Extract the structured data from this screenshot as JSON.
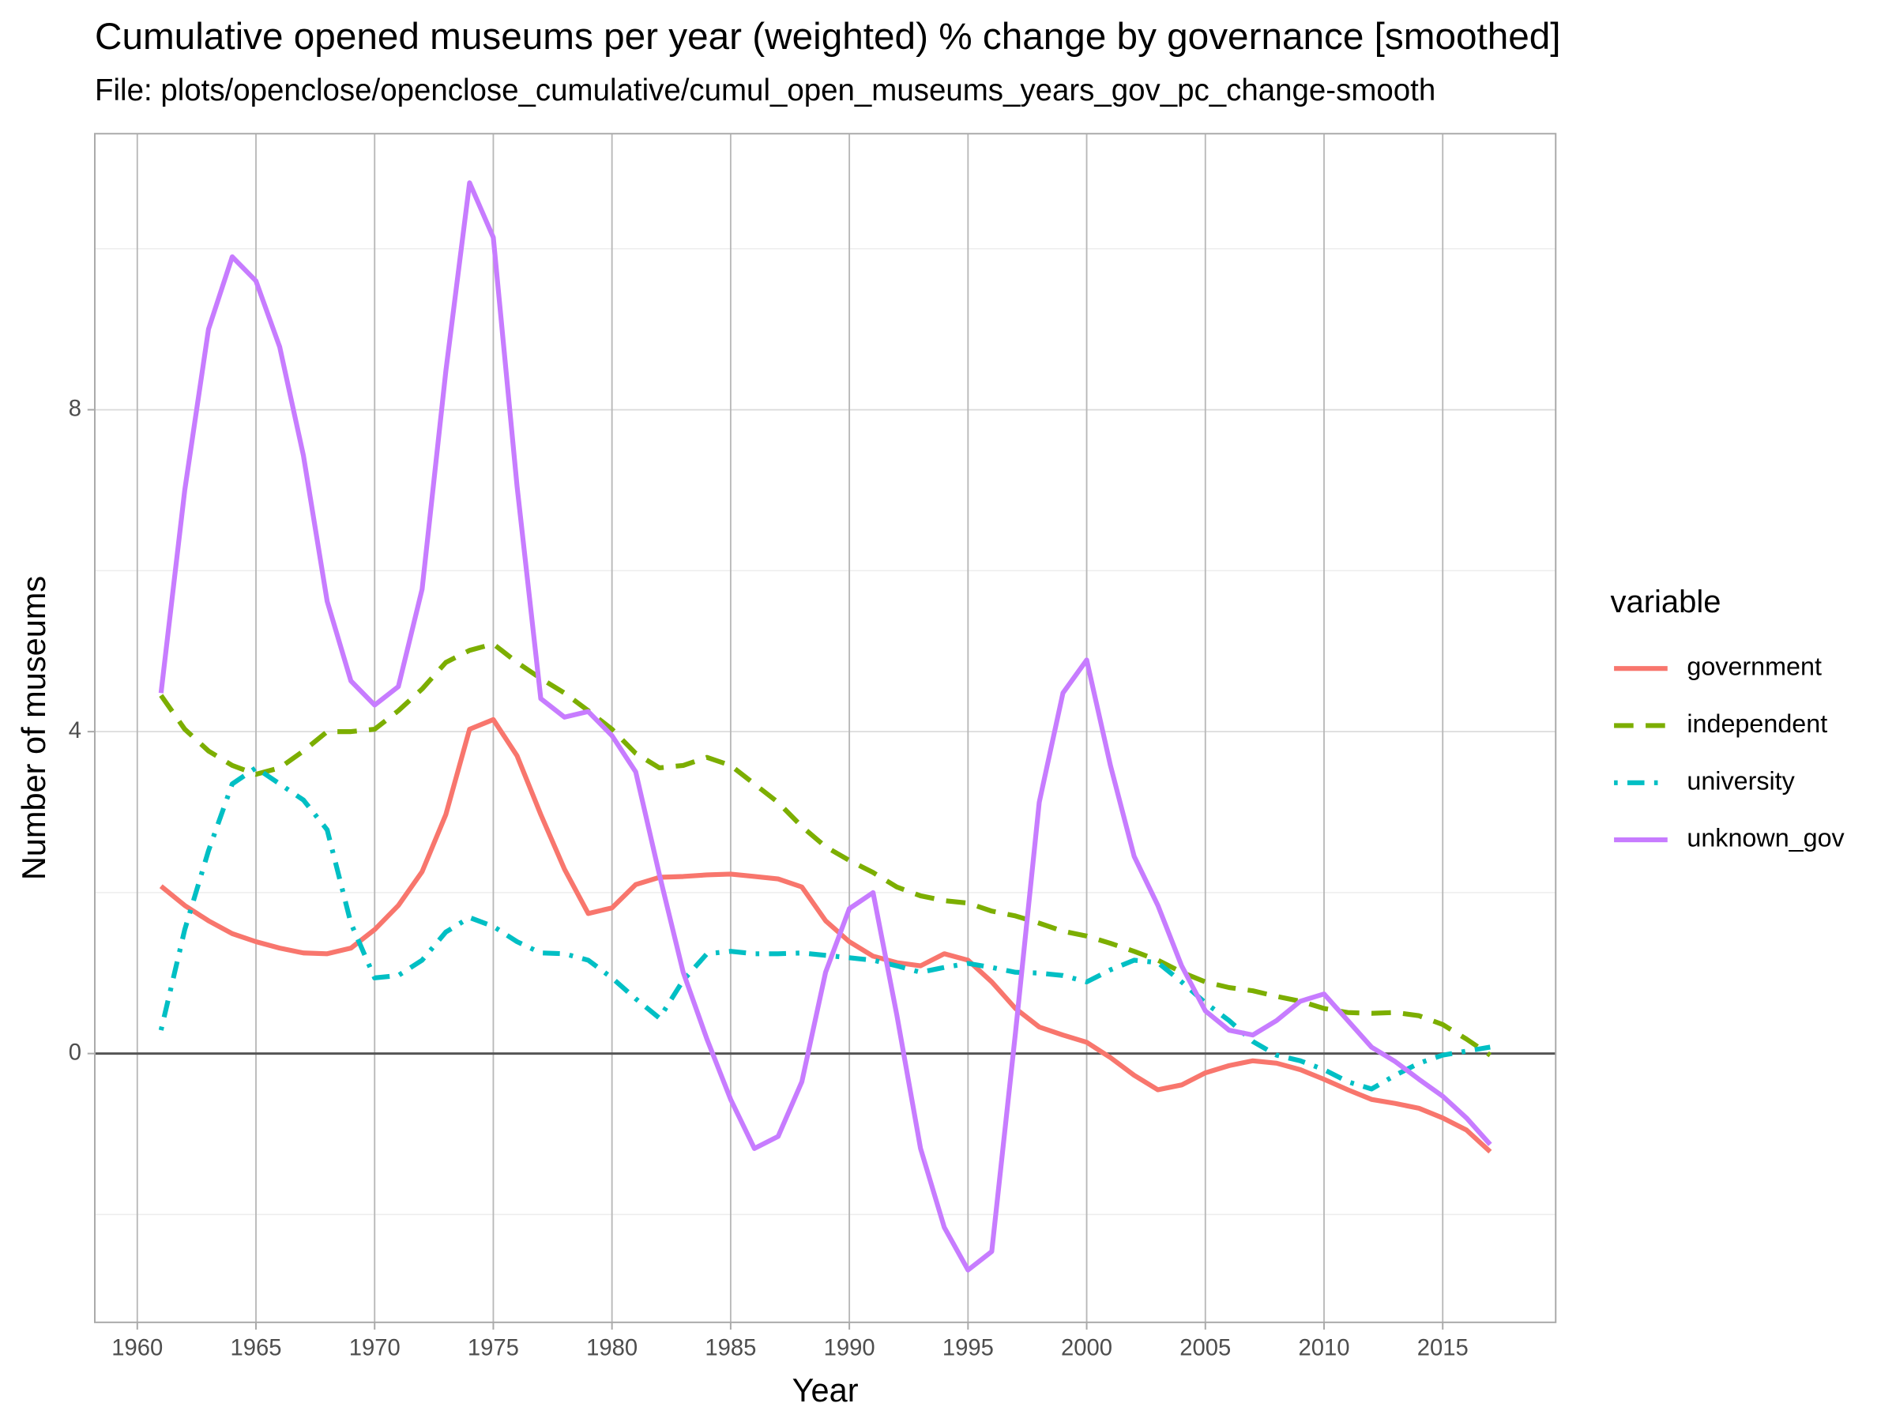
{
  "chart_data": {
    "type": "line",
    "title": "Cumulative opened museums per year (weighted) % change by governance [smoothed]",
    "subtitle": "File: plots/openclose/openclose_cumulative/cumul_open_museums_years_gov_pc_change-smooth",
    "x_label": "Year",
    "y_label": "Number of museums",
    "legend_title": "variable",
    "legend_position": "right",
    "x": [
      1961,
      1962,
      1963,
      1964,
      1965,
      1966,
      1967,
      1968,
      1969,
      1970,
      1971,
      1972,
      1973,
      1974,
      1975,
      1976,
      1977,
      1978,
      1979,
      1980,
      1981,
      1982,
      1983,
      1984,
      1985,
      1986,
      1987,
      1988,
      1989,
      1990,
      1991,
      1992,
      1993,
      1994,
      1995,
      1996,
      1997,
      1998,
      1999,
      2000,
      2001,
      2002,
      2003,
      2004,
      2005,
      2006,
      2007,
      2008,
      2009,
      2010,
      2011,
      2012,
      2013,
      2014,
      2015,
      2016,
      2017
    ],
    "series": [
      {
        "name": "government",
        "color": "#F8766D",
        "dash": "solid",
        "values": [
          2.08,
          1.84,
          1.65,
          1.49,
          1.39,
          1.31,
          1.25,
          1.24,
          1.31,
          1.54,
          1.84,
          2.26,
          2.97,
          4.03,
          4.15,
          3.7,
          2.97,
          2.29,
          1.74,
          1.81,
          2.1,
          2.19,
          2.2,
          2.22,
          2.23,
          2.2,
          2.17,
          2.07,
          1.65,
          1.39,
          1.21,
          1.13,
          1.09,
          1.24,
          1.16,
          0.89,
          0.56,
          0.33,
          0.23,
          0.14,
          -0.05,
          -0.27,
          -0.45,
          -0.39,
          -0.24,
          -0.15,
          -0.09,
          -0.12,
          -0.2,
          -0.32,
          -0.45,
          -0.57,
          -0.62,
          -0.68,
          -0.8,
          -0.95,
          -1.22
        ]
      },
      {
        "name": "independent",
        "color": "#7CAE00",
        "dash": "dashed",
        "values": [
          4.45,
          4.03,
          3.76,
          3.58,
          3.47,
          3.55,
          3.76,
          4.0,
          4.0,
          4.03,
          4.26,
          4.53,
          4.86,
          5.01,
          5.09,
          4.86,
          4.66,
          4.48,
          4.26,
          4.03,
          3.73,
          3.55,
          3.58,
          3.68,
          3.58,
          3.35,
          3.12,
          2.82,
          2.57,
          2.4,
          2.25,
          2.07,
          1.96,
          1.9,
          1.87,
          1.77,
          1.71,
          1.62,
          1.52,
          1.46,
          1.37,
          1.27,
          1.16,
          1.01,
          0.89,
          0.82,
          0.78,
          0.71,
          0.65,
          0.56,
          0.51,
          0.5,
          0.51,
          0.47,
          0.36,
          0.18,
          -0.02
        ]
      },
      {
        "name": "university",
        "color": "#00BFC4",
        "dash": "dotdash",
        "values": [
          0.29,
          1.54,
          2.52,
          3.35,
          3.55,
          3.35,
          3.15,
          2.78,
          1.62,
          0.94,
          0.97,
          1.16,
          1.51,
          1.69,
          1.58,
          1.39,
          1.25,
          1.24,
          1.16,
          0.94,
          0.68,
          0.44,
          0.91,
          1.24,
          1.27,
          1.24,
          1.24,
          1.25,
          1.22,
          1.19,
          1.16,
          1.09,
          1.01,
          1.07,
          1.12,
          1.07,
          1.01,
          1.0,
          0.97,
          0.89,
          1.04,
          1.16,
          1.13,
          0.89,
          0.63,
          0.41,
          0.15,
          -0.02,
          -0.09,
          -0.2,
          -0.35,
          -0.44,
          -0.27,
          -0.12,
          -0.02,
          0.03,
          0.08
        ]
      },
      {
        "name": "unknown_gov",
        "color": "#C77CFF",
        "dash": "solid",
        "values": [
          4.48,
          7.0,
          9.0,
          9.9,
          9.6,
          8.78,
          7.43,
          5.62,
          4.63,
          4.33,
          4.56,
          5.77,
          8.48,
          10.82,
          10.14,
          7.05,
          4.41,
          4.18,
          4.25,
          3.95,
          3.5,
          2.22,
          1.01,
          0.18,
          -0.57,
          -1.18,
          -1.03,
          -0.35,
          1.01,
          1.8,
          2.0,
          0.48,
          -1.18,
          -2.16,
          -2.69,
          -2.46,
          0.26,
          3.12,
          4.48,
          4.89,
          3.58,
          2.45,
          1.84,
          1.09,
          0.53,
          0.29,
          0.23,
          0.41,
          0.65,
          0.74,
          0.41,
          0.08,
          -0.1,
          -0.32,
          -0.53,
          -0.8,
          -1.13
        ]
      }
    ],
    "xlim": [
      1958.21,
      2019.76
    ],
    "xticks": [
      1960,
      1965,
      1970,
      1975,
      1980,
      1985,
      1990,
      1995,
      2000,
      2005,
      2010,
      2015
    ],
    "ylim": [
      -3.34,
      11.43
    ],
    "yticks": [
      0,
      4,
      8
    ],
    "y_minor_ticks": [
      -2,
      2,
      6,
      10
    ],
    "hline": 0,
    "grid": true
  }
}
